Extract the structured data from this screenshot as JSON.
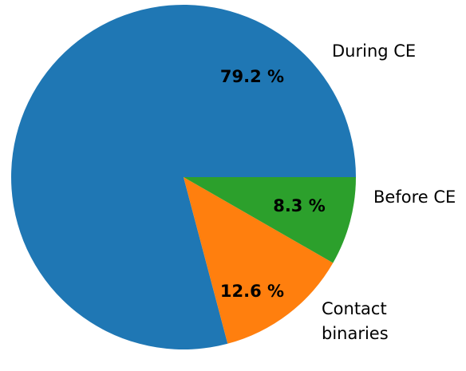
{
  "chart_data": {
    "type": "pie",
    "categories": [
      "During CE",
      "Contact\nbinaries",
      "Before CE"
    ],
    "values": [
      79.2,
      12.6,
      8.3
    ],
    "value_labels": [
      "79.2 %",
      "12.6 %",
      "8.3 %"
    ],
    "colors": [
      "#1f77b4",
      "#ff7f0e",
      "#2ca02c"
    ]
  }
}
